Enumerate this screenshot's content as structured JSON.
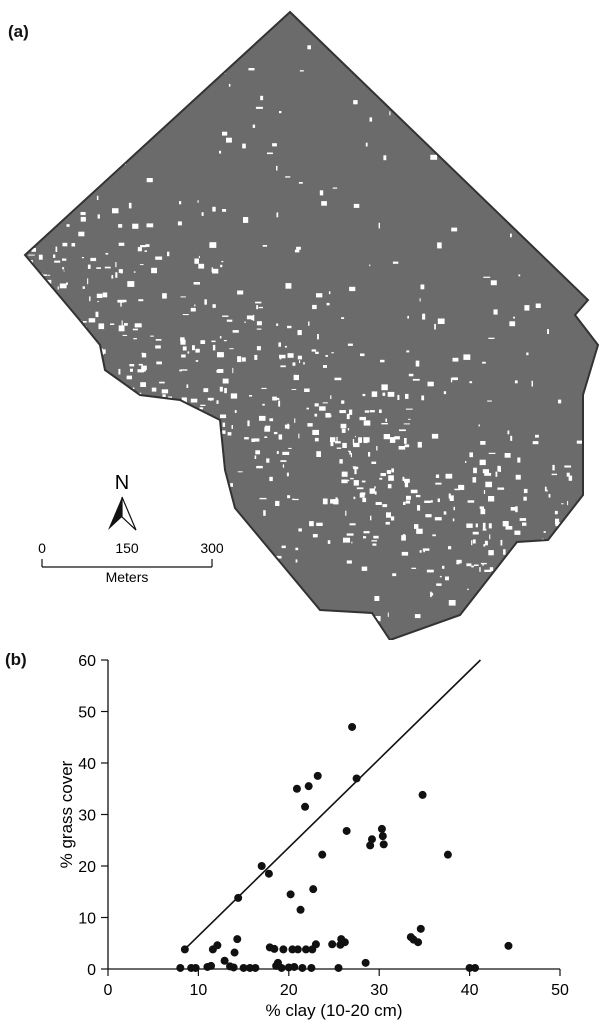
{
  "panel_a": {
    "label": "(a)",
    "north_label": "N",
    "scale_ticks": [
      "0",
      "150",
      "300"
    ],
    "scale_unit": "Meters",
    "colors": {
      "vegetation": "#6b6b6b",
      "background": "#ffffff",
      "outline": "#333333"
    }
  },
  "panel_b": {
    "label": "(b)"
  },
  "chart_data": {
    "type": "scatter",
    "title": "",
    "xlabel": "% clay (10-20 cm)",
    "ylabel": "% grass cover",
    "xlim": [
      0,
      50
    ],
    "ylim": [
      0,
      60
    ],
    "xticks": [
      0,
      10,
      20,
      30,
      40,
      50
    ],
    "yticks": [
      0,
      10,
      20,
      30,
      40,
      50,
      60
    ],
    "grid": false,
    "marker_color": "#111111",
    "points": [
      [
        8,
        0.2
      ],
      [
        8.5,
        3.8
      ],
      [
        9.2,
        0.2
      ],
      [
        9.7,
        0.2
      ],
      [
        11,
        0.4
      ],
      [
        11.4,
        0.6
      ],
      [
        11.6,
        3.8
      ],
      [
        12.1,
        4.6
      ],
      [
        12.9,
        1.6
      ],
      [
        13.5,
        0.5
      ],
      [
        13.9,
        0.3
      ],
      [
        14,
        3.2
      ],
      [
        14.3,
        5.8
      ],
      [
        14.4,
        13.8
      ],
      [
        15,
        0.2
      ],
      [
        15.7,
        0.2
      ],
      [
        16.3,
        0.2
      ],
      [
        17,
        20
      ],
      [
        17.8,
        18.5
      ],
      [
        17.9,
        4.2
      ],
      [
        18.4,
        3.9
      ],
      [
        18.6,
        0.6
      ],
      [
        18.8,
        1.2
      ],
      [
        19.2,
        0.2
      ],
      [
        19.4,
        3.8
      ],
      [
        20,
        0.3
      ],
      [
        20.2,
        14.5
      ],
      [
        20.4,
        3.8
      ],
      [
        20.6,
        0.4
      ],
      [
        20.9,
        35
      ],
      [
        21,
        3.8
      ],
      [
        21.3,
        11.5
      ],
      [
        21.5,
        0.2
      ],
      [
        21.8,
        31.5
      ],
      [
        21.9,
        3.8
      ],
      [
        22.2,
        35.5
      ],
      [
        22.5,
        0.2
      ],
      [
        22.6,
        3.8
      ],
      [
        22.7,
        15.5
      ],
      [
        23,
        4.8
      ],
      [
        23.2,
        37.5
      ],
      [
        23.7,
        22.2
      ],
      [
        24.8,
        4.8
      ],
      [
        25.5,
        0.2
      ],
      [
        25.7,
        4.7
      ],
      [
        25.8,
        5.8
      ],
      [
        26.2,
        5.2
      ],
      [
        26.4,
        26.8
      ],
      [
        27,
        47
      ],
      [
        27.5,
        37
      ],
      [
        28.5,
        1.2
      ],
      [
        29,
        24
      ],
      [
        29.2,
        25.2
      ],
      [
        30.3,
        27.2
      ],
      [
        30.4,
        25.8
      ],
      [
        30.5,
        24.2
      ],
      [
        33.5,
        6.2
      ],
      [
        33.8,
        5.7
      ],
      [
        34.3,
        5.2
      ],
      [
        34.6,
        7.8
      ],
      [
        34.8,
        33.8
      ],
      [
        37.6,
        22.2
      ],
      [
        40,
        0.2
      ],
      [
        40.6,
        0.2
      ],
      [
        44.3,
        4.5
      ]
    ],
    "fit_line": {
      "x": [
        8.3,
        41.2
      ],
      "y": [
        3.5,
        60
      ]
    }
  }
}
